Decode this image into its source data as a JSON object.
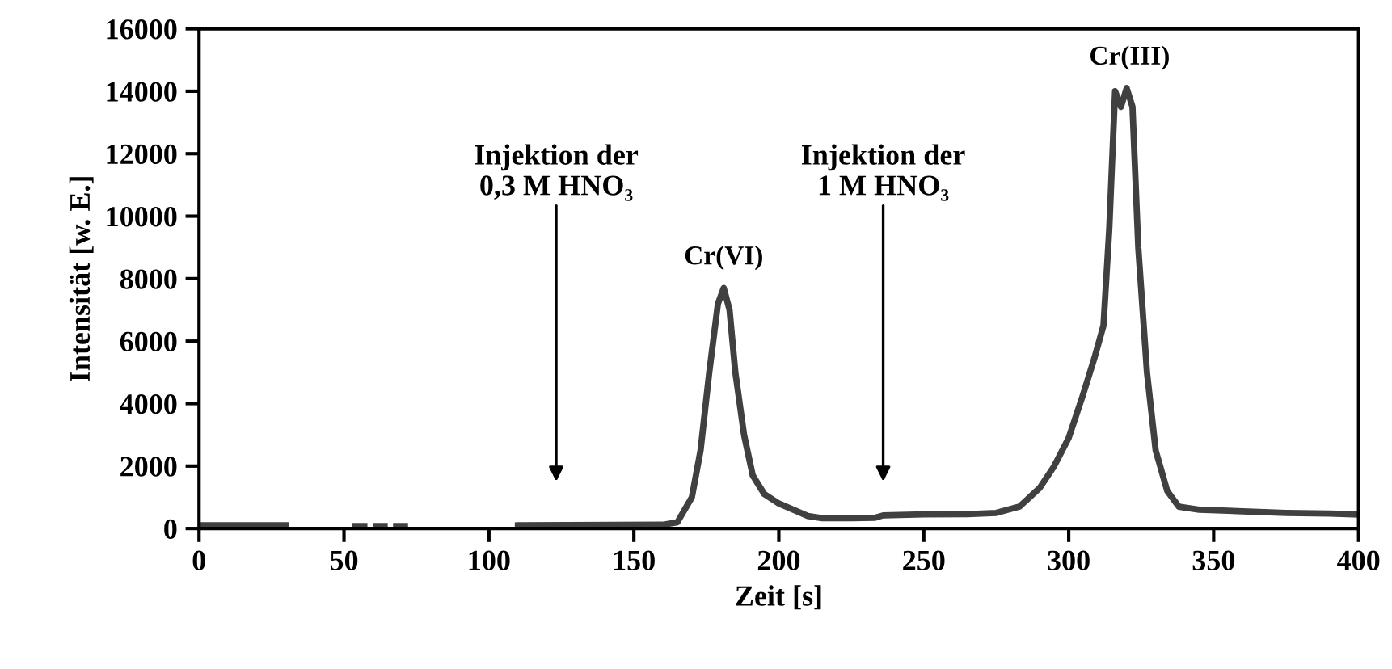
{
  "chart_data": {
    "type": "line",
    "xlabel": "Zeit [s]",
    "ylabel": "Intensität [w. E.]",
    "x": [
      0,
      30,
      31,
      54,
      57,
      58,
      61,
      64,
      65,
      68,
      71,
      72,
      110,
      160,
      165,
      170,
      173,
      176,
      179,
      181,
      183,
      185,
      188,
      191,
      195,
      200,
      205,
      210,
      215,
      225,
      233,
      236,
      250,
      265,
      275,
      283,
      290,
      295,
      300,
      305,
      309,
      312,
      314,
      316,
      318,
      320,
      322,
      324,
      327,
      330,
      334,
      338,
      345,
      360,
      375,
      390,
      400
    ],
    "series": [
      {
        "color": "#404040",
        "values": [
          100,
          100,
          null,
          80,
          80,
          null,
          80,
          80,
          null,
          80,
          80,
          null,
          100,
          120,
          200,
          1000,
          2500,
          5000,
          7200,
          7700,
          7000,
          5000,
          3000,
          1700,
          1100,
          800,
          600,
          400,
          330,
          330,
          340,
          420,
          450,
          460,
          500,
          700,
          1300,
          2000,
          2900,
          4300,
          5500,
          6500,
          9600,
          14000,
          13500,
          14100,
          13500,
          9000,
          5000,
          2500,
          1200,
          700,
          600,
          550,
          500,
          480,
          450
        ]
      }
    ],
    "xlim": [
      0,
      400
    ],
    "xticks": [
      0,
      50,
      100,
      150,
      200,
      250,
      300,
      350,
      400
    ],
    "ylim": [
      0,
      16000
    ],
    "yticks": [
      0,
      2000,
      4000,
      6000,
      8000,
      10000,
      12000,
      14000,
      16000
    ],
    "grid": false,
    "legend": false,
    "marker": "none",
    "line_style": "solid",
    "annotations": [
      "Injektion der\n0,3 M HNO₃",
      "Injektion der\n1 M HNO₃",
      {
        "text": "Cr(VI)",
        "x": 181,
        "y": 7700
      },
      {
        "text": "Cr(III)",
        "x": 321,
        "y": 14100
      }
    ]
  }
}
